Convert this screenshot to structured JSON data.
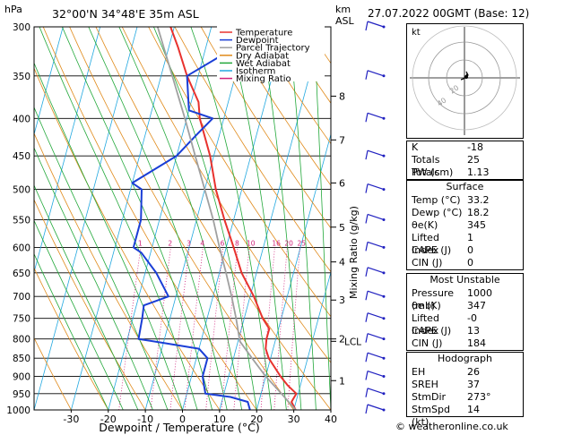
{
  "header": {
    "units_hpa": "hPa",
    "location": "32°00'N  34°48'E  35m  ASL",
    "units_km": "km",
    "units_asl": "ASL",
    "date": "27.07.2022  00GMT  (Base: 12)"
  },
  "legend": [
    {
      "label": "Temperature",
      "color": "#e8322e"
    },
    {
      "label": "Dewpoint",
      "color": "#1a3ed6"
    },
    {
      "label": "Parcel Trajectory",
      "color": "#a0a0a0"
    },
    {
      "label": "Dry Adiabat",
      "color": "#e08a1a"
    },
    {
      "label": "Wet Adiabat",
      "color": "#22a83a"
    },
    {
      "label": "Isotherm",
      "color": "#22a8e0"
    },
    {
      "label": "Mixing Ratio",
      "color": "#d0207a"
    }
  ],
  "chart_data": {
    "type": "line",
    "title": "",
    "xlabel": "Dewpoint / Temperature (°C)",
    "ylabel": "hPa",
    "right_axis_label": "Mixing Ratio (g/kg)",
    "xlim": [
      -40,
      40
    ],
    "x_ticks": [
      -30,
      -20,
      -10,
      0,
      10,
      20,
      30,
      40
    ],
    "pressure_ticks": [
      300,
      350,
      400,
      450,
      500,
      550,
      600,
      650,
      700,
      750,
      800,
      850,
      900,
      950,
      1000
    ],
    "plim": [
      300,
      1000
    ],
    "height_ticks": [
      {
        "km": "1",
        "p": 912
      },
      {
        "km": "2",
        "p": 800
      },
      {
        "km": "3",
        "p": 708
      },
      {
        "km": "4",
        "p": 628
      },
      {
        "km": "5",
        "p": 563
      },
      {
        "km": "6",
        "p": 490
      },
      {
        "km": "7",
        "p": 428
      },
      {
        "km": "8",
        "p": 373
      }
    ],
    "lcl": {
      "label": "LCL",
      "p": 806
    },
    "mixing_ratio_labels": [
      "1",
      "2",
      "3",
      "4",
      "6",
      "8",
      "10",
      "16",
      "20",
      "25"
    ],
    "series": [
      {
        "name": "Temperature",
        "points": [
          [
            1000,
            30.5
          ],
          [
            975,
            28.8
          ],
          [
            950,
            29.5
          ],
          [
            925,
            26.5
          ],
          [
            900,
            24.0
          ],
          [
            850,
            19.5
          ],
          [
            825,
            18.0
          ],
          [
            800,
            17.5
          ],
          [
            775,
            17.5
          ],
          [
            750,
            15.0
          ],
          [
            700,
            11.0
          ],
          [
            650,
            6.0
          ],
          [
            600,
            2.0
          ],
          [
            550,
            -2.5
          ],
          [
            500,
            -7.0
          ],
          [
            450,
            -11.0
          ],
          [
            400,
            -16.5
          ],
          [
            380,
            -18.0
          ],
          [
            350,
            -23.0
          ],
          [
            320,
            -27.5
          ],
          [
            300,
            -31.0
          ]
        ]
      },
      {
        "name": "Dewpoint",
        "points": [
          [
            1000,
            18.2
          ],
          [
            975,
            17.0
          ],
          [
            960,
            12.0
          ],
          [
            950,
            5.0
          ],
          [
            925,
            4.0
          ],
          [
            900,
            3.0
          ],
          [
            850,
            3.0
          ],
          [
            825,
            0.0
          ],
          [
            810,
            -10.0
          ],
          [
            800,
            -17.0
          ],
          [
            750,
            -17.5
          ],
          [
            720,
            -18.0
          ],
          [
            700,
            -12.0
          ],
          [
            650,
            -17.0
          ],
          [
            610,
            -22.5
          ],
          [
            600,
            -25.0
          ],
          [
            550,
            -25.0
          ],
          [
            500,
            -27.0
          ],
          [
            490,
            -30.0
          ],
          [
            450,
            -20.0
          ],
          [
            420,
            -16.0
          ],
          [
            400,
            -13.0
          ],
          [
            390,
            -20.0
          ],
          [
            350,
            -23.0
          ],
          [
            325,
            -14.0
          ],
          [
            300,
            -9.0
          ]
        ]
      },
      {
        "name": "Parcel Trajectory",
        "points": [
          [
            1000,
            30.5
          ],
          [
            950,
            25.5
          ],
          [
            900,
            20.0
          ],
          [
            850,
            15.0
          ],
          [
            806,
            10.5
          ],
          [
            750,
            7.8
          ],
          [
            700,
            5.0
          ],
          [
            650,
            1.8
          ],
          [
            600,
            -1.8
          ],
          [
            550,
            -5.5
          ],
          [
            500,
            -10.0
          ],
          [
            450,
            -15.0
          ],
          [
            400,
            -20.5
          ],
          [
            350,
            -27.0
          ],
          [
            300,
            -34.5
          ]
        ]
      }
    ]
  },
  "hodograph": {
    "label": "kt",
    "ring_labels": [
      "20",
      "40"
    ]
  },
  "wind_barbs_color": "#2020c0",
  "indices": [
    {
      "k": "K",
      "v": "-18"
    },
    {
      "k": "Totals Totals",
      "v": "25"
    },
    {
      "k": "PW (cm)",
      "v": "1.13"
    }
  ],
  "surface": {
    "title": "Surface",
    "rows": [
      {
        "k": "Temp (°C)",
        "v": "33.2"
      },
      {
        "k": "Dewp (°C)",
        "v": "18.2"
      },
      {
        "k": "θe(K)",
        "v": "345"
      },
      {
        "k": "Lifted Index",
        "v": "1"
      },
      {
        "k": "CAPE (J)",
        "v": "0"
      },
      {
        "k": "CIN (J)",
        "v": "0"
      }
    ]
  },
  "most_unstable": {
    "title": "Most Unstable",
    "rows": [
      {
        "k": "Pressure (mb)",
        "v": "1000"
      },
      {
        "k": "θe (K)",
        "v": "347"
      },
      {
        "k": "Lifted Index",
        "v": "-0"
      },
      {
        "k": "CAPE (J)",
        "v": "13"
      },
      {
        "k": "CIN (J)",
        "v": "184"
      }
    ]
  },
  "hodograph_params": {
    "title": "Hodograph",
    "rows": [
      {
        "k": "EH",
        "v": "26"
      },
      {
        "k": "SREH",
        "v": "37"
      },
      {
        "k": "StmDir",
        "v": "273°"
      },
      {
        "k": "StmSpd (kt)",
        "v": "14"
      }
    ]
  },
  "copyright": "© weatheronline.co.uk"
}
